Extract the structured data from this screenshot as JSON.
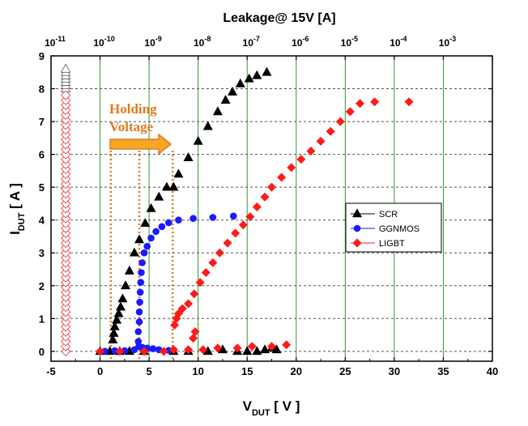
{
  "chart_data": {
    "type": "scatter",
    "title": "",
    "top_axis": {
      "label": "Leakage@ 15V [A]",
      "scale": "log",
      "ticks": [
        {
          "base": "10",
          "exp": "-11"
        },
        {
          "base": "10",
          "exp": "-10"
        },
        {
          "base": "10",
          "exp": "-9"
        },
        {
          "base": "10",
          "exp": "-8"
        },
        {
          "base": "10",
          "exp": "-7"
        },
        {
          "base": "10",
          "exp": "-6"
        },
        {
          "base": "10",
          "exp": "-5"
        },
        {
          "base": "10",
          "exp": "-4"
        },
        {
          "base": "10",
          "exp": "-3"
        }
      ]
    },
    "xlabel": {
      "main": "V",
      "sub": "DUT",
      "unit": " [ V ]"
    },
    "ylabel": {
      "main": "I",
      "sub": "DUT",
      "unit": " [ A ]"
    },
    "xlim": [
      -5,
      40
    ],
    "ylim": [
      -0.3,
      9
    ],
    "x_ticks": [
      "-5",
      "0",
      "5",
      "10",
      "15",
      "20",
      "25",
      "30",
      "35",
      "40"
    ],
    "y_ticks": [
      "0",
      "1",
      "2",
      "3",
      "4",
      "5",
      "6",
      "7",
      "8",
      "9"
    ],
    "grid": true,
    "legend_position": "right",
    "annotation": {
      "line1": "Holding",
      "line2": "Voltage",
      "color": "#e07b22"
    },
    "holding_voltage_lines": [
      1.1,
      4.0,
      7.4
    ],
    "series": [
      {
        "name": "SCR",
        "color": "#000000",
        "marker": "triangle",
        "points": [
          [
            0,
            0
          ],
          [
            1,
            0
          ],
          [
            2,
            0
          ],
          [
            3,
            0
          ],
          [
            4.5,
            0
          ],
          [
            7.5,
            0
          ],
          [
            9,
            0
          ],
          [
            11,
            0
          ],
          [
            12.5,
            0.05
          ],
          [
            14,
            0
          ],
          [
            15,
            0
          ],
          [
            16,
            0
          ],
          [
            16.8,
            0.05
          ],
          [
            17.5,
            0.1
          ],
          [
            18,
            0.05
          ],
          [
            1.3,
            0.35
          ],
          [
            1.4,
            0.55
          ],
          [
            1.5,
            0.75
          ],
          [
            1.7,
            0.95
          ],
          [
            1.9,
            1.15
          ],
          [
            2.1,
            1.35
          ],
          [
            2.3,
            1.6
          ],
          [
            2.6,
            2.0
          ],
          [
            3.0,
            2.45
          ],
          [
            3.5,
            3.0
          ],
          [
            4.0,
            3.4
          ],
          [
            4.6,
            3.9
          ],
          [
            5.2,
            4.35
          ],
          [
            6.0,
            4.7
          ],
          [
            6.8,
            5.0
          ],
          [
            7.5,
            5.0
          ],
          [
            8.0,
            5.4
          ],
          [
            9.0,
            5.9
          ],
          [
            10.0,
            6.4
          ],
          [
            11.0,
            6.85
          ],
          [
            12.0,
            7.3
          ],
          [
            12.8,
            7.65
          ],
          [
            13.5,
            7.9
          ],
          [
            14.3,
            8.15
          ],
          [
            15.2,
            8.3
          ],
          [
            16.0,
            8.4
          ],
          [
            17.0,
            8.5
          ],
          [
            -3.5,
            8.0
          ],
          [
            -3.5,
            8.1
          ],
          [
            -3.5,
            8.2
          ],
          [
            -3.5,
            8.3
          ],
          [
            -3.5,
            8.4
          ],
          [
            -3.5,
            8.5
          ],
          [
            -3.5,
            8.6
          ]
        ]
      },
      {
        "name": "GGNMOS",
        "color": "#1a1aff",
        "marker": "circle",
        "points": [
          [
            0.5,
            0
          ],
          [
            1.5,
            0.02
          ],
          [
            2.5,
            0.02
          ],
          [
            3.5,
            0.05
          ],
          [
            3.9,
            0.3
          ],
          [
            3.9,
            0.6
          ],
          [
            4.0,
            0.9
          ],
          [
            4.0,
            1.2
          ],
          [
            4.05,
            1.5
          ],
          [
            4.1,
            1.8
          ],
          [
            4.15,
            2.1
          ],
          [
            4.2,
            2.4
          ],
          [
            4.3,
            2.7
          ],
          [
            4.5,
            3.0
          ],
          [
            4.8,
            3.2
          ],
          [
            5.2,
            3.45
          ],
          [
            5.7,
            3.65
          ],
          [
            6.3,
            3.8
          ],
          [
            7.0,
            3.92
          ],
          [
            8.0,
            4.0
          ],
          [
            9.5,
            4.05
          ],
          [
            11.5,
            4.08
          ],
          [
            13.6,
            4.12
          ],
          [
            3.95,
            0.15
          ],
          [
            4.3,
            0.12
          ],
          [
            4.8,
            0.1
          ],
          [
            5.4,
            0.08
          ],
          [
            6.0,
            0.05
          ],
          [
            7.0,
            0.03
          ]
        ]
      },
      {
        "name": "LIGBT",
        "color": "#ff1a1a",
        "marker": "diamond",
        "points": [
          [
            0,
            0
          ],
          [
            2,
            0
          ],
          [
            4.5,
            0
          ],
          [
            6.5,
            0
          ],
          [
            7.5,
            0.05
          ],
          [
            9.0,
            0.05
          ],
          [
            10.5,
            0.05
          ],
          [
            12.0,
            0.1
          ],
          [
            14.0,
            0.1
          ],
          [
            15.5,
            0.15
          ],
          [
            17.5,
            0.15
          ],
          [
            19.0,
            0.2
          ],
          [
            9.5,
            0.4
          ],
          [
            9.7,
            0.6
          ],
          [
            7.6,
            0.8
          ],
          [
            7.8,
            1.0
          ],
          [
            8.0,
            1.15
          ],
          [
            8.4,
            1.3
          ],
          [
            9.0,
            1.45
          ],
          [
            9.6,
            1.75
          ],
          [
            10.2,
            2.1
          ],
          [
            10.8,
            2.4
          ],
          [
            11.5,
            2.7
          ],
          [
            12.2,
            3.0
          ],
          [
            13.0,
            3.3
          ],
          [
            13.8,
            3.6
          ],
          [
            14.6,
            3.85
          ],
          [
            15.3,
            4.1
          ],
          [
            16.0,
            4.4
          ],
          [
            16.8,
            4.7
          ],
          [
            17.5,
            5.0
          ],
          [
            18.5,
            5.3
          ],
          [
            19.5,
            5.6
          ],
          [
            20.5,
            5.85
          ],
          [
            21.5,
            6.1
          ],
          [
            22.5,
            6.4
          ],
          [
            23.5,
            6.7
          ],
          [
            24.5,
            7.0
          ],
          [
            25.5,
            7.3
          ],
          [
            26.5,
            7.55
          ],
          [
            28.0,
            7.6
          ],
          [
            31.5,
            7.6
          ],
          [
            -3.5,
            0.0
          ],
          [
            -3.5,
            0.15
          ],
          [
            -3.5,
            0.3
          ],
          [
            -3.5,
            0.45
          ],
          [
            -3.5,
            0.6
          ],
          [
            -3.5,
            0.75
          ],
          [
            -3.5,
            0.9
          ],
          [
            -3.5,
            1.05
          ],
          [
            -3.5,
            1.2
          ],
          [
            -3.5,
            1.35
          ],
          [
            -3.5,
            1.5
          ],
          [
            -3.5,
            1.65
          ],
          [
            -3.5,
            1.8
          ],
          [
            -3.5,
            1.95
          ],
          [
            -3.5,
            2.1
          ],
          [
            -3.5,
            2.25
          ],
          [
            -3.5,
            2.4
          ],
          [
            -3.5,
            2.55
          ],
          [
            -3.5,
            2.7
          ],
          [
            -3.5,
            2.85
          ],
          [
            -3.5,
            3.0
          ],
          [
            -3.5,
            3.15
          ],
          [
            -3.5,
            3.3
          ],
          [
            -3.5,
            3.45
          ],
          [
            -3.5,
            3.6
          ],
          [
            -3.5,
            3.75
          ],
          [
            -3.5,
            3.9
          ],
          [
            -3.5,
            4.05
          ],
          [
            -3.5,
            4.2
          ],
          [
            -3.5,
            4.35
          ],
          [
            -3.5,
            4.5
          ],
          [
            -3.5,
            4.65
          ],
          [
            -3.5,
            4.8
          ],
          [
            -3.5,
            4.95
          ],
          [
            -3.5,
            5.1
          ],
          [
            -3.5,
            5.25
          ],
          [
            -3.5,
            5.4
          ],
          [
            -3.5,
            5.55
          ],
          [
            -3.5,
            5.7
          ],
          [
            -3.5,
            5.85
          ],
          [
            -3.5,
            6.0
          ],
          [
            -3.5,
            6.15
          ],
          [
            -3.5,
            6.3
          ],
          [
            -3.5,
            6.45
          ],
          [
            -3.5,
            6.6
          ],
          [
            -3.5,
            6.75
          ],
          [
            -3.5,
            6.9
          ],
          [
            -3.5,
            7.05
          ],
          [
            -3.5,
            7.2
          ],
          [
            -3.5,
            7.35
          ],
          [
            -3.5,
            7.5
          ],
          [
            -3.5,
            7.65
          ],
          [
            -3.5,
            7.8
          ]
        ]
      }
    ]
  }
}
